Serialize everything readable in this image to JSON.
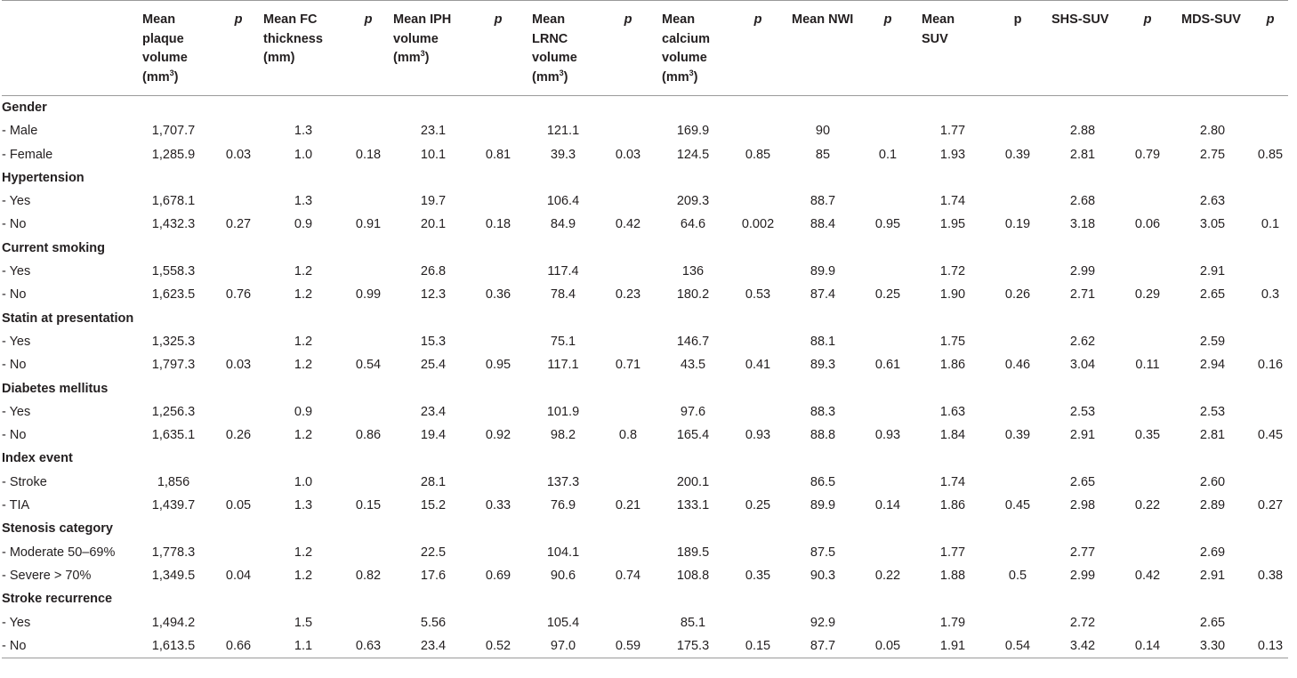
{
  "headers": [
    {
      "text": "",
      "style": "label"
    },
    {
      "text": "Mean plaque volume (mm3)",
      "lines": [
        "Mean",
        "plaque",
        "volume",
        "(mm",
        "3",
        ")"
      ],
      "style": "num"
    },
    {
      "text": "p",
      "style": "p"
    },
    {
      "text": "Mean FC thickness (mm)",
      "style": "num"
    },
    {
      "text": "p",
      "style": "p"
    },
    {
      "text": "Mean IPH volume (mm3)",
      "style": "num"
    },
    {
      "text": "p",
      "style": "p"
    },
    {
      "text": "Mean LRNC volume (mm3)",
      "style": "num"
    },
    {
      "text": "p",
      "style": "p"
    },
    {
      "text": "Mean calcium volume (mm3)",
      "style": "num"
    },
    {
      "text": "p",
      "style": "p"
    },
    {
      "text": "Mean NWI",
      "style": "num"
    },
    {
      "text": "p",
      "style": "p"
    },
    {
      "text": "Mean SUV",
      "style": "num"
    },
    {
      "text": "p",
      "style": "plain"
    },
    {
      "text": "SHS-SUV",
      "style": "num"
    },
    {
      "text": "p",
      "style": "p"
    },
    {
      "text": "MDS-SUV",
      "style": "num"
    },
    {
      "text": "p",
      "style": "p"
    }
  ],
  "header_parts": {
    "plaque": {
      "a": "Mean",
      "b": "plaque",
      "c": "volume",
      "d": "(mm",
      "sup": "3",
      "e": ")"
    },
    "fc": {
      "a": "Mean FC",
      "b": "thickness",
      "c": "(mm)"
    },
    "iph": {
      "a": "Mean IPH",
      "b": "volume",
      "c": "(mm",
      "sup": "3",
      "e": ")"
    },
    "lrnc": {
      "a": "Mean",
      "b": "LRNC",
      "c": "volume",
      "d": "(mm",
      "sup": "3",
      "e": ")"
    },
    "calcium": {
      "a": "Mean",
      "b": "calcium",
      "c": "volume",
      "d": "(mm",
      "sup": "3",
      "e": ")"
    },
    "nwi": {
      "a": "Mean NWI"
    },
    "suv": {
      "a": "Mean",
      "b": "SUV"
    },
    "shs": {
      "a": "SHS-SUV"
    },
    "mds": {
      "a": "MDS-SUV"
    },
    "p_italic": "p",
    "p_plain": "p"
  },
  "rows": [
    {
      "group": "Gender"
    },
    {
      "cells": [
        "- Male",
        "1,707.7",
        "",
        "1.3",
        "",
        "23.1",
        "",
        "121.1",
        "",
        "169.9",
        "",
        "90",
        "",
        "1.77",
        "",
        "2.88",
        "",
        "2.80",
        ""
      ]
    },
    {
      "cells": [
        "- Female",
        "1,285.9",
        "0.03",
        "1.0",
        "0.18",
        "10.1",
        "0.81",
        "39.3",
        "0.03",
        "124.5",
        "0.85",
        "85",
        "0.1",
        "1.93",
        "0.39",
        "2.81",
        "0.79",
        "2.75",
        "0.85"
      ]
    },
    {
      "group": "Hypertension"
    },
    {
      "cells": [
        "- Yes",
        "1,678.1",
        "",
        "1.3",
        "",
        "19.7",
        "",
        "106.4",
        "",
        "209.3",
        "",
        "88.7",
        "",
        "1.74",
        "",
        "2.68",
        "",
        "2.63",
        ""
      ]
    },
    {
      "cells": [
        "- No",
        "1,432.3",
        "0.27",
        "0.9",
        "0.91",
        "20.1",
        "0.18",
        "84.9",
        "0.42",
        "64.6",
        "0.002",
        "88.4",
        "0.95",
        "1.95",
        "0.19",
        "3.18",
        "0.06",
        "3.05",
        "0.1"
      ]
    },
    {
      "group": "Current smoking"
    },
    {
      "cells": [
        "- Yes",
        "1,558.3",
        "",
        "1.2",
        "",
        "26.8",
        "",
        "117.4",
        "",
        "136",
        "",
        "89.9",
        "",
        "1.72",
        "",
        "2.99",
        "",
        "2.91",
        ""
      ]
    },
    {
      "cells": [
        "- No",
        "1,623.5",
        "0.76",
        "1.2",
        "0.99",
        "12.3",
        "0.36",
        "78.4",
        "0.23",
        "180.2",
        "0.53",
        "87.4",
        "0.25",
        "1.90",
        "0.26",
        "2.71",
        "0.29",
        "2.65",
        "0.3"
      ]
    },
    {
      "group": "Statin at presentation"
    },
    {
      "cells": [
        "- Yes",
        "1,325.3",
        "",
        "1.2",
        "",
        "15.3",
        "",
        "75.1",
        "",
        "146.7",
        "",
        "88.1",
        "",
        "1.75",
        "",
        "2.62",
        "",
        "2.59",
        ""
      ]
    },
    {
      "cells": [
        "- No",
        "1,797.3",
        "0.03",
        "1.2",
        "0.54",
        "25.4",
        "0.95",
        "117.1",
        "0.71",
        "43.5",
        "0.41",
        "89.3",
        "0.61",
        "1.86",
        "0.46",
        "3.04",
        "0.11",
        "2.94",
        "0.16"
      ]
    },
    {
      "group": "Diabetes mellitus"
    },
    {
      "cells": [
        "- Yes",
        "1,256.3",
        "",
        "0.9",
        "",
        "23.4",
        "",
        "101.9",
        "",
        "97.6",
        "",
        "88.3",
        "",
        "1.63",
        "",
        "2.53",
        "",
        "2.53",
        ""
      ]
    },
    {
      "cells": [
        "- No",
        "1,635.1",
        "0.26",
        "1.2",
        "0.86",
        "19.4",
        "0.92",
        "98.2",
        "0.8",
        "165.4",
        "0.93",
        "88.8",
        "0.93",
        "1.84",
        "0.39",
        "2.91",
        "0.35",
        "2.81",
        "0.45"
      ]
    },
    {
      "group": "Index event"
    },
    {
      "cells": [
        "- Stroke",
        "1,856",
        "",
        "1.0",
        "",
        "28.1",
        "",
        "137.3",
        "",
        "200.1",
        "",
        "86.5",
        "",
        "1.74",
        "",
        "2.65",
        "",
        "2.60",
        ""
      ]
    },
    {
      "cells": [
        "- TIA",
        "1,439.7",
        "0.05",
        "1.3",
        "0.15",
        "15.2",
        "0.33",
        "76.9",
        "0.21",
        "133.1",
        "0.25",
        "89.9",
        "0.14",
        "1.86",
        "0.45",
        "2.98",
        "0.22",
        "2.89",
        "0.27"
      ]
    },
    {
      "group": "Stenosis category"
    },
    {
      "cells": [
        "- Moderate 50–69%",
        "1,778.3",
        "",
        "1.2",
        "",
        "22.5",
        "",
        "104.1",
        "",
        "189.5",
        "",
        "87.5",
        "",
        "1.77",
        "",
        "2.77",
        "",
        "2.69",
        ""
      ]
    },
    {
      "cells": [
        "- Severe > 70%",
        "1,349.5",
        "0.04",
        "1.2",
        "0.82",
        "17.6",
        "0.69",
        "90.6",
        "0.74",
        "108.8",
        "0.35",
        "90.3",
        "0.22",
        "1.88",
        "0.5",
        "2.99",
        "0.42",
        "2.91",
        "0.38"
      ]
    },
    {
      "group": "Stroke recurrence"
    },
    {
      "cells": [
        "- Yes",
        "1,494.2",
        "",
        "1.5",
        "",
        "5.56",
        "",
        "105.4",
        "",
        "85.1",
        "",
        "92.9",
        "",
        "1.79",
        "",
        "2.72",
        "",
        "2.65",
        ""
      ]
    },
    {
      "cells": [
        "- No",
        "1,613.5",
        "0.66",
        "1.1",
        "0.63",
        "23.4",
        "0.52",
        "97.0",
        "0.59",
        "175.3",
        "0.15",
        "87.7",
        "0.05",
        "1.91",
        "0.54",
        "3.42",
        "0.14",
        "3.30",
        "0.13"
      ]
    }
  ]
}
